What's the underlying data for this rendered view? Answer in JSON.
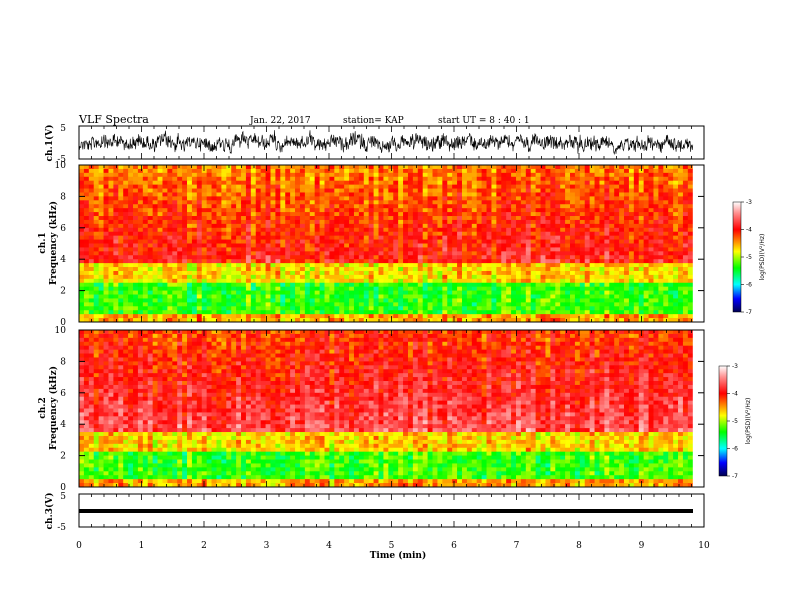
{
  "header": {
    "title": "VLF Spectra",
    "date": "Jan. 22, 2017",
    "station": "station= KAP",
    "start": "start  UT =   8 : 40 : 1"
  },
  "chart_data": [
    {
      "type": "line",
      "name": "ch1-waveform",
      "ylabel": "ch.1(V)",
      "ylim": [
        -5,
        5
      ],
      "yticks": [
        "5",
        "-5"
      ],
      "xlim": [
        0,
        10
      ]
    },
    {
      "type": "heatmap",
      "name": "ch1-spectrogram",
      "ylabel_line1": "ch.1",
      "ylabel_line2": "Frequency  (kHz)",
      "ylim": [
        0,
        10
      ],
      "yticks": [
        "0",
        "2",
        "4",
        "6",
        "8",
        "10"
      ],
      "xlim": [
        0,
        10
      ],
      "colorbar": {
        "label": "log(PSD)(V²/Hz)",
        "range": [
          -7,
          -3
        ],
        "ticks": [
          "-3",
          "-4",
          "-5",
          "-6",
          "-7"
        ]
      }
    },
    {
      "type": "heatmap",
      "name": "ch2-spectrogram",
      "ylabel_line1": "ch.2",
      "ylabel_line2": "Frequency  (kHz)",
      "ylim": [
        0,
        10
      ],
      "yticks": [
        "0",
        "2",
        "4",
        "6",
        "8",
        "10"
      ],
      "xlim": [
        0,
        10
      ],
      "colorbar": {
        "label": "log(PSD)(V²/Hz)",
        "range": [
          -7,
          -3
        ],
        "ticks": [
          "-3",
          "-4",
          "-5",
          "-6",
          "-7"
        ]
      }
    },
    {
      "type": "line",
      "name": "ch3-waveform",
      "ylabel": "ch.3(V)",
      "ylim": [
        -5,
        5
      ],
      "yticks": [
        "5",
        "-5"
      ],
      "xlim": [
        0,
        10
      ],
      "xlabel": "Time  (min)",
      "xticks": [
        "0",
        "1",
        "2",
        "3",
        "4",
        "5",
        "6",
        "7",
        "8",
        "9",
        "10"
      ]
    }
  ]
}
